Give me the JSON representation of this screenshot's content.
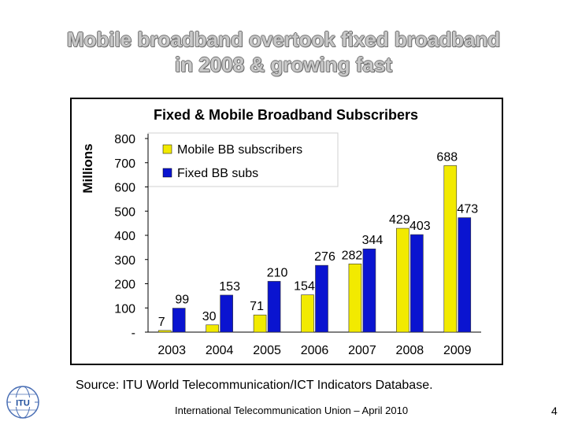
{
  "slide": {
    "title_line1": "Mobile broadband overtook fixed broadband",
    "title_line2": "in 2008 & growing fast",
    "source": "Source: ITU World Telecommunication/ICT Indicators Database.",
    "footer": "International Telecommunication Union – April 2010",
    "page_number": "4",
    "logo_text": "ITU"
  },
  "colors": {
    "mobile": "#f2ea00",
    "fixed": "#0a14d0",
    "title_fill": "#c8c8c8"
  },
  "chart_data": {
    "type": "bar",
    "title": "Fixed & Mobile Broadband Subscribers",
    "ylabel": "Millions",
    "xlabel": "",
    "categories": [
      "2003",
      "2004",
      "2005",
      "2006",
      "2007",
      "2008",
      "2009"
    ],
    "series": [
      {
        "name": "Mobile BB subscribers",
        "values": [
          7,
          30,
          71,
          154,
          282,
          429,
          688
        ]
      },
      {
        "name": "Fixed BB subs",
        "values": [
          99,
          153,
          210,
          276,
          344,
          403,
          473
        ]
      }
    ],
    "ylim": [
      0,
      800
    ],
    "yticks": [
      0,
      100,
      200,
      300,
      400,
      500,
      600,
      700,
      800
    ],
    "ytick_labels": [
      "-",
      "100",
      "200",
      "300",
      "400",
      "500",
      "600",
      "700",
      "800"
    ],
    "grid": false,
    "legend_position": "top-left",
    "data_labels": true
  }
}
